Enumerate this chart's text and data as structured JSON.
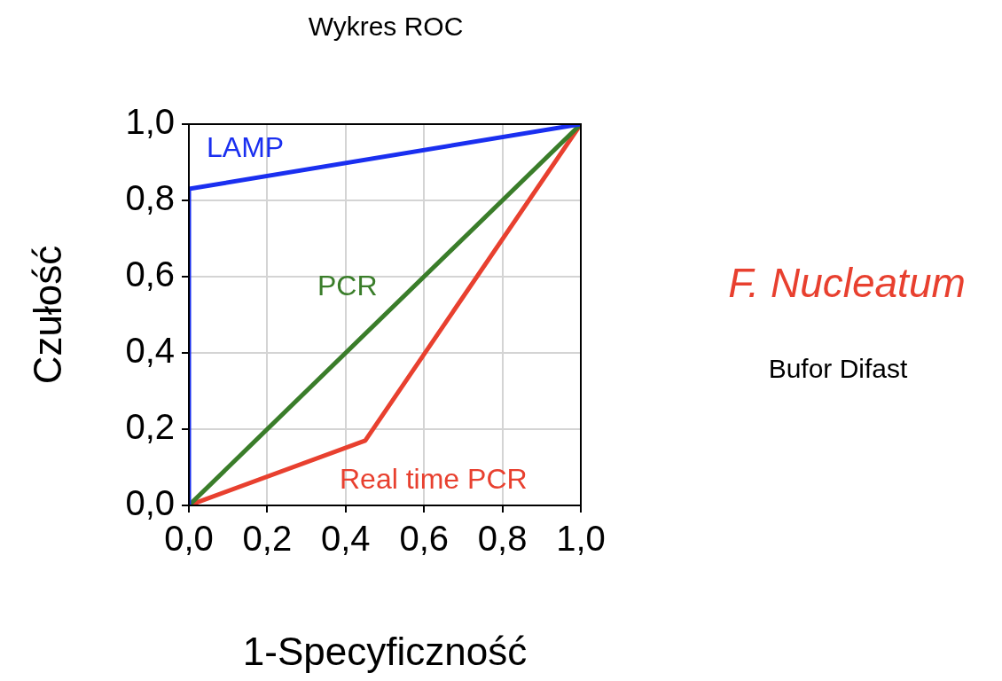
{
  "chart_data": {
    "type": "line",
    "title": "Wykres ROC",
    "xlabel": "1-Specyficzność",
    "ylabel": "Czułość",
    "series": [
      {
        "name": "LAMP",
        "color": "#1a2ff0",
        "x": [
          0,
          0,
          1
        ],
        "values": [
          0,
          0.83,
          1
        ]
      },
      {
        "name": "PCR",
        "color": "#3a7d2a",
        "x": [
          0,
          1
        ],
        "values": [
          0,
          1
        ]
      },
      {
        "name": "Real time PCR",
        "color": "#e8402f",
        "x": [
          0,
          0.45,
          1
        ],
        "values": [
          0,
          0.17,
          1
        ]
      }
    ],
    "xlim": [
      0,
      1
    ],
    "ylim": [
      0,
      1
    ],
    "xticks": [
      {
        "value": 0,
        "label": "0,0"
      },
      {
        "value": 0.2,
        "label": "0,2"
      },
      {
        "value": 0.4,
        "label": "0,4"
      },
      {
        "value": 0.6,
        "label": "0,6"
      },
      {
        "value": 0.8,
        "label": "0,8"
      },
      {
        "value": 1,
        "label": "1,0"
      }
    ],
    "yticks": [
      {
        "value": 0,
        "label": "0,0"
      },
      {
        "value": 0.2,
        "label": "0,2"
      },
      {
        "value": 0.4,
        "label": "0,4"
      },
      {
        "value": 0.6,
        "label": "0,6"
      },
      {
        "value": 0.8,
        "label": "0,8"
      },
      {
        "value": 1,
        "label": "1,0"
      }
    ],
    "grid": true,
    "legend": false,
    "marker": "none",
    "line_style": "solid",
    "annotations": [
      "F. Nucleatum",
      "Bufor Difast"
    ]
  }
}
